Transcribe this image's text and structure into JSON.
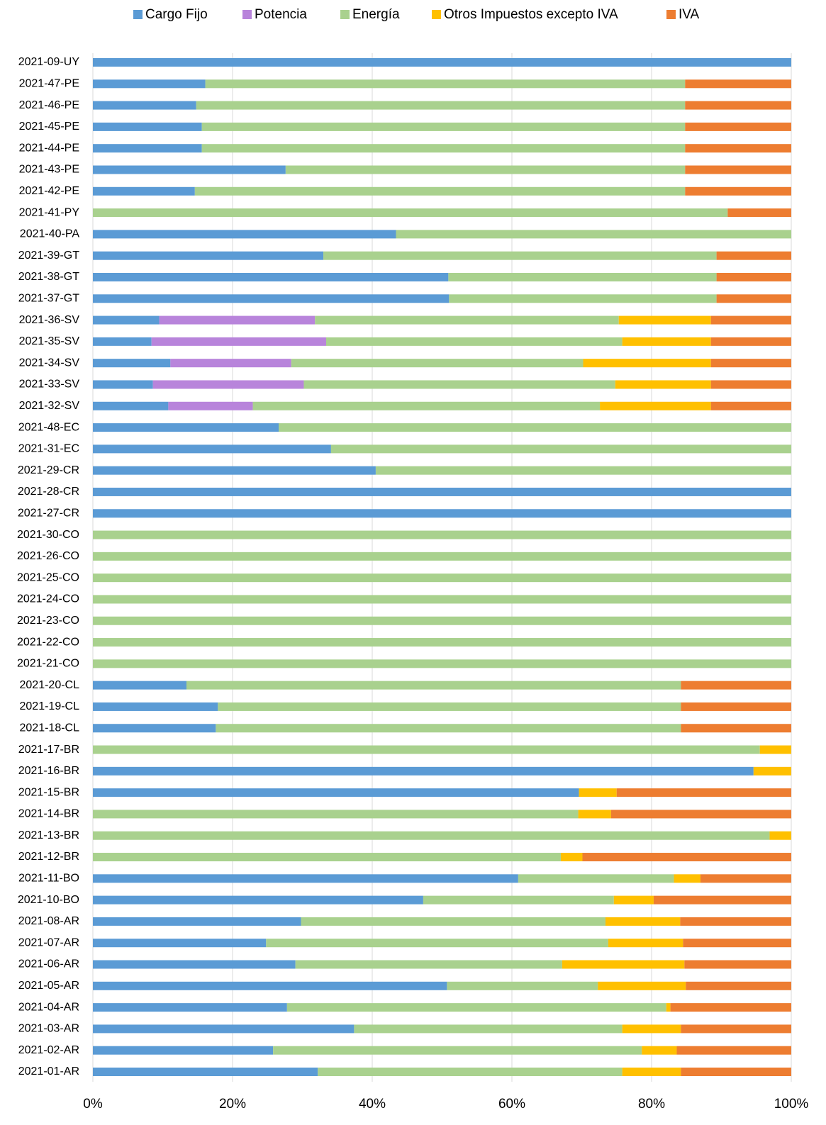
{
  "chart_data": {
    "type": "stacked-barh",
    "categories": [
      "2021-09-UY",
      "2021-47-PE",
      "2021-46-PE",
      "2021-45-PE",
      "2021-44-PE",
      "2021-43-PE",
      "2021-42-PE",
      "2021-41-PY",
      "2021-40-PA",
      "2021-39-GT",
      "2021-38-GT",
      "2021-37-GT",
      "2021-36-SV",
      "2021-35-SV",
      "2021-34-SV",
      "2021-33-SV",
      "2021-32-SV",
      "2021-48-EC",
      "2021-31-EC",
      "2021-29-CR",
      "2021-28-CR",
      "2021-27-CR",
      "2021-30-CO",
      "2021-26-CO",
      "2021-25-CO",
      "2021-24-CO",
      "2021-23-CO",
      "2021-22-CO",
      "2021-21-CO",
      "2021-20-CL",
      "2021-19-CL",
      "2021-18-CL",
      "2021-17-BR",
      "2021-16-BR",
      "2021-15-BR",
      "2021-14-BR",
      "2021-13-BR",
      "2021-12-BR",
      "2021-11-BO",
      "2021-10-BO",
      "2021-08-AR",
      "2021-07-AR",
      "2021-06-AR",
      "2021-05-AR",
      "2021-04-AR",
      "2021-03-AR",
      "2021-02-AR",
      "2021-01-AR"
    ],
    "series": [
      {
        "name": "Cargo Fijo",
        "color": "#5b9bd5",
        "values": [
          100,
          16.1,
          14.8,
          15.6,
          15.6,
          27.6,
          14.6,
          0,
          43.4,
          33.0,
          50.9,
          51.0,
          9.5,
          8.4,
          11.1,
          8.6,
          10.8,
          26.6,
          34.1,
          40.5,
          100,
          100,
          0,
          0,
          0,
          0,
          0,
          0,
          0,
          13.4,
          17.9,
          17.6,
          0,
          94.6,
          69.6,
          0,
          0,
          0,
          60.9,
          47.3,
          29.8,
          24.8,
          29.0,
          50.7,
          27.8,
          37.4,
          25.8,
          32.2
        ]
      },
      {
        "name": "Potencia",
        "color": "#b884db",
        "values": [
          0,
          0,
          0,
          0,
          0,
          0,
          0,
          0,
          0,
          0,
          0,
          0,
          22.3,
          25.0,
          17.3,
          21.6,
          12.1,
          0,
          0,
          0,
          0,
          0,
          0,
          0,
          0,
          0,
          0,
          0,
          0,
          0,
          0,
          0,
          0,
          0,
          0,
          0,
          0,
          0,
          0,
          0,
          0,
          0,
          0,
          0,
          0,
          0,
          0,
          0
        ]
      },
      {
        "name": "Energía",
        "color": "#a9d18e",
        "values": [
          0,
          68.7,
          70.0,
          69.2,
          69.2,
          57.2,
          70.2,
          90.9,
          56.6,
          56.3,
          38.4,
          38.3,
          43.5,
          42.4,
          41.8,
          44.6,
          49.7,
          73.4,
          65.9,
          59.5,
          0,
          0,
          100,
          100,
          100,
          100,
          100,
          100,
          100,
          70.8,
          66.3,
          66.6,
          95.5,
          0,
          0,
          69.5,
          96.9,
          67.0,
          22.3,
          27.3,
          43.6,
          49.0,
          38.2,
          21.6,
          54.3,
          38.4,
          52.8,
          43.6
        ]
      },
      {
        "name": "Otros Impuestos excepto IVA",
        "color": "#ffc000",
        "values": [
          0,
          0,
          0,
          0,
          0,
          0,
          0,
          0,
          0,
          0,
          0,
          0,
          13.2,
          12.7,
          18.3,
          13.7,
          15.9,
          0,
          0,
          0,
          0,
          0,
          0,
          0,
          0,
          0,
          0,
          0,
          0,
          0,
          0,
          0,
          4.5,
          5.4,
          5.4,
          4.7,
          3.1,
          3.1,
          3.8,
          5.7,
          10.7,
          10.7,
          17.5,
          12.6,
          0.6,
          8.4,
          5.0,
          8.4
        ]
      },
      {
        "name": "IVA",
        "color": "#ed7d31",
        "values": [
          0,
          15.2,
          15.2,
          15.2,
          15.2,
          15.2,
          15.2,
          9.1,
          0,
          10.7,
          10.7,
          10.7,
          11.5,
          11.5,
          11.5,
          11.5,
          11.5,
          0,
          0,
          0,
          0,
          0,
          0,
          0,
          0,
          0,
          0,
          0,
          0,
          15.8,
          15.8,
          15.8,
          0,
          0,
          25.0,
          25.8,
          0,
          29.9,
          13.0,
          19.7,
          15.9,
          15.5,
          15.3,
          15.1,
          17.3,
          15.8,
          16.4,
          15.8
        ]
      }
    ],
    "xlim": [
      0,
      100
    ],
    "xticks": [
      {
        "value": 0,
        "label": "0%"
      },
      {
        "value": 20,
        "label": "20%"
      },
      {
        "value": 40,
        "label": "40%"
      },
      {
        "value": 60,
        "label": "60%"
      },
      {
        "value": 80,
        "label": "80%"
      },
      {
        "value": 100,
        "label": "100%"
      }
    ],
    "grid": true,
    "legend": "top"
  }
}
